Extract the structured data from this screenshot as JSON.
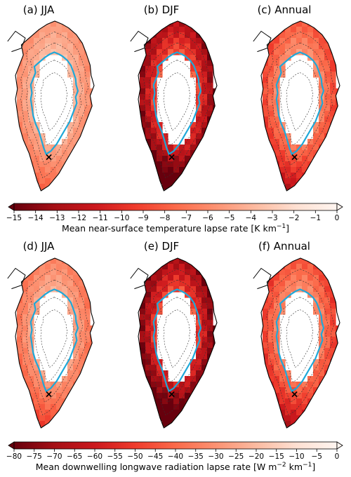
{
  "figure": {
    "row1": {
      "panels": [
        "(a) JJA",
        "(b) DJF",
        "(c) Annual"
      ],
      "colorbar": {
        "ticks": [
          "−15",
          "−14",
          "−13",
          "−12",
          "−11",
          "−10",
          "−9",
          "−8",
          "−7",
          "−6",
          "−5",
          "−4",
          "−3",
          "−2",
          "−1",
          "0"
        ],
        "label": "Mean near-surface temperature lapse rate [K km",
        "label_sup": "−1",
        "label_end": "]"
      },
      "intensity": [
        0.38,
        0.88,
        0.58
      ]
    },
    "row2": {
      "panels": [
        "(d) JJA",
        "(e) DJF",
        "(f) Annual"
      ],
      "colorbar": {
        "ticks": [
          "−80",
          "−75",
          "−70",
          "−65",
          "−60",
          "−55",
          "−50",
          "−45",
          "−40",
          "−35",
          "−30",
          "−25",
          "−20",
          "−15",
          "−10",
          "−5",
          "0"
        ],
        "label": "Mean downwelling longwave radiation lapse rate [W m",
        "label_sup": "−2",
        "label_mid": " km",
        "label_sup2": "−1",
        "label_end": "]"
      },
      "intensity": [
        0.45,
        0.92,
        0.6
      ]
    },
    "marker": "×",
    "colors": {
      "colormap": [
        "#fff5f0",
        "#fee0d2",
        "#fcbba1",
        "#fc9272",
        "#fb6a4a",
        "#ef3b2c",
        "#cb181d",
        "#a50f15",
        "#67000d"
      ],
      "contour_1000m": "#1fa8d8",
      "coastline": "#000000"
    }
  }
}
